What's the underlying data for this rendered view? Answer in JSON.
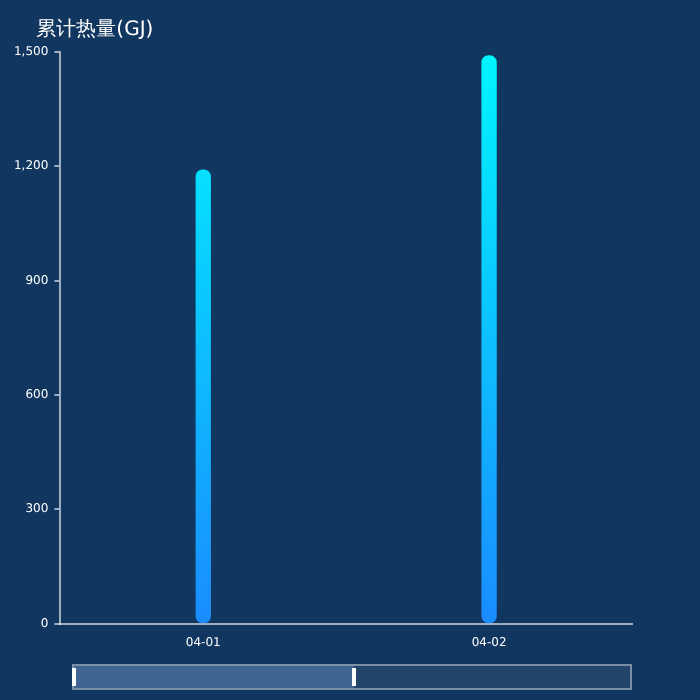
{
  "chart_data": {
    "type": "bar",
    "ylabel": "累计热量(GJ)",
    "categories": [
      "04-01",
      "04-02"
    ],
    "series": [
      {
        "color": "#1a8cff",
        "values": [
          1190,
          1490
        ]
      }
    ],
    "ylim": [
      0,
      1500
    ],
    "yticks": [
      0,
      {
        "value": 300,
        "label": "300"
      },
      {
        "value": 600,
        "label": "600"
      },
      {
        "value": 900,
        "label": "900"
      },
      {
        "value": 1200,
        "label": "1,200"
      },
      {
        "value": 1500,
        "label": "1,500"
      }
    ],
    "grid": false,
    "legend": false
  }
}
